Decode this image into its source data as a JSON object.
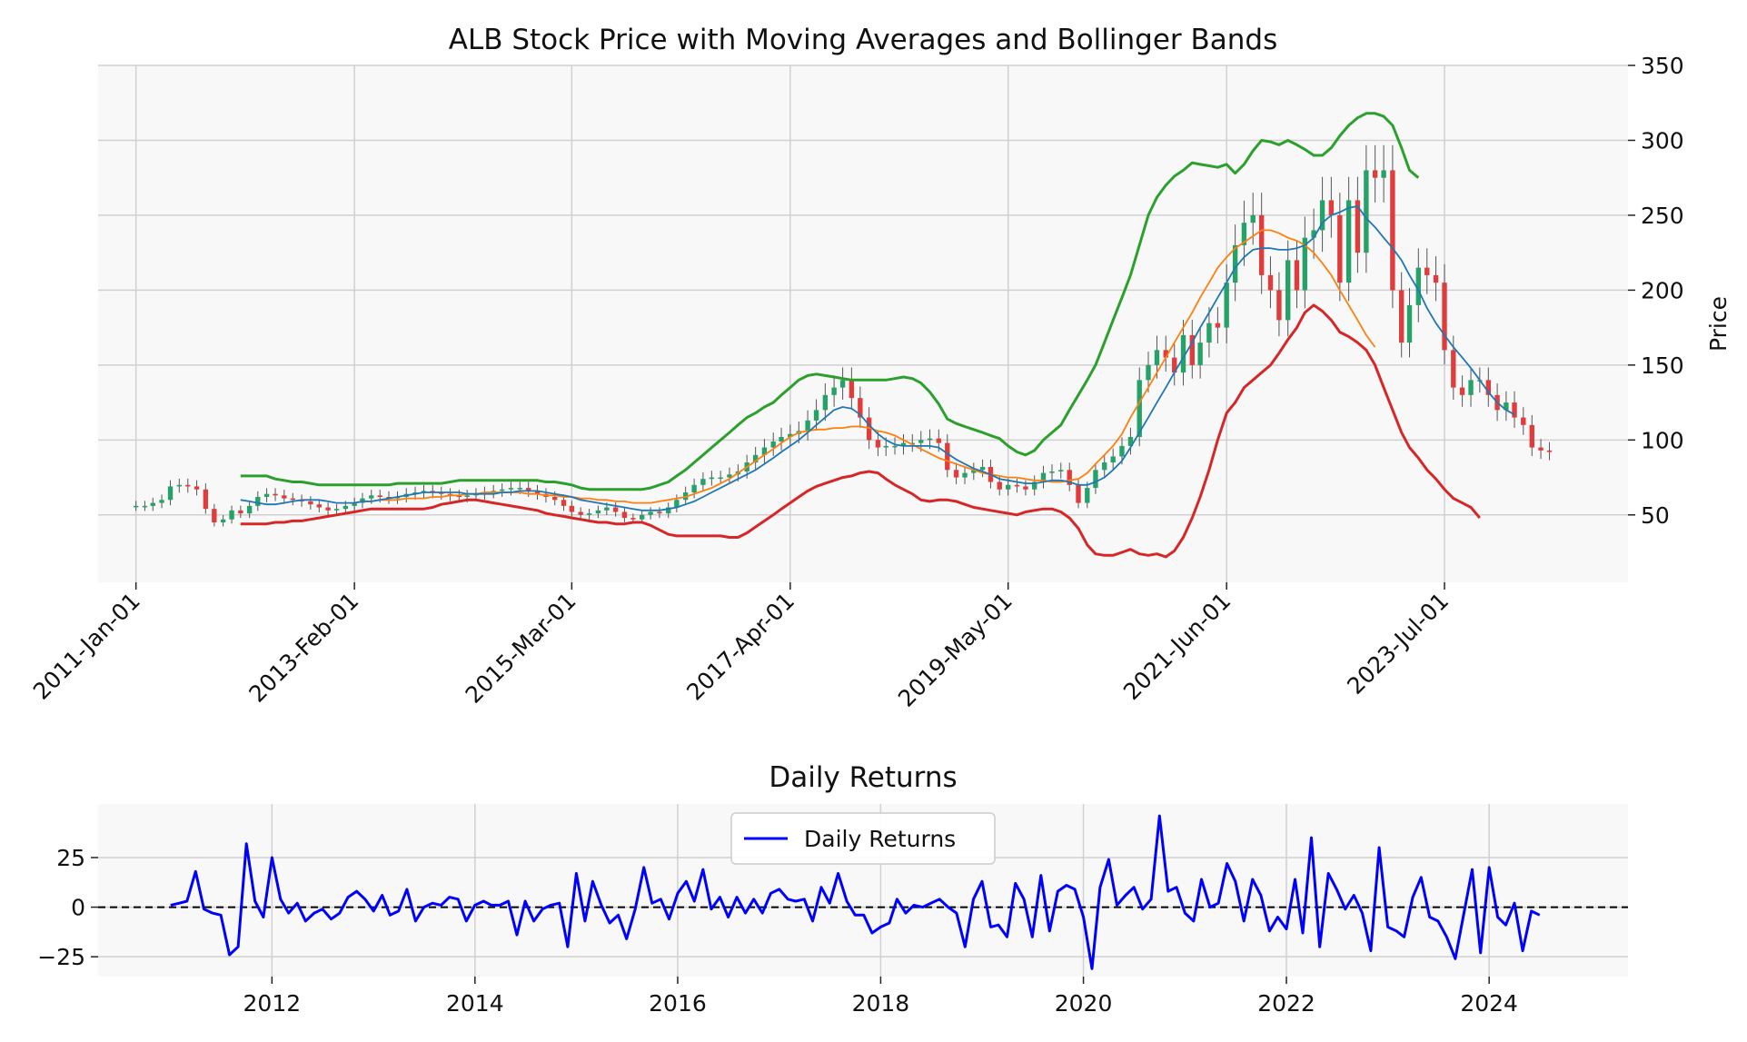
{
  "chart_data": [
    {
      "type": "candlestick",
      "title": "ALB Stock Price with Moving Averages and Bollinger Bands",
      "ylabel": "Price",
      "ylim": [
        5,
        350
      ],
      "yticks": [
        50,
        100,
        150,
        200,
        250,
        300,
        350
      ],
      "xlim": [
        "2010-08-22",
        "2025-04-01"
      ],
      "xticks": [
        "2011-01-01",
        "2013-02-01",
        "2015-03-01",
        "2017-04-01",
        "2019-05-01",
        "2021-06-01",
        "2023-07-01"
      ],
      "xtick_labels": [
        "2011-Jan-01",
        "2013-Feb-01",
        "2015-Mar-01",
        "2017-Apr-01",
        "2019-May-01",
        "2021-Jun-01",
        "2023-Jul-01"
      ],
      "y_axis_side": "right",
      "grid": true,
      "colors": {
        "up": "#26a269",
        "down": "#e03c3c",
        "ma_short": "#1f77b4",
        "ma_long": "#ff7f0e",
        "bb_upper": "#2ca02c",
        "bb_lower": "#d62728",
        "plot_bg": "#f8f8f8"
      },
      "close": [
        56,
        56,
        58,
        60,
        69,
        70,
        69,
        67,
        54,
        45,
        47,
        53,
        51,
        56,
        62,
        64,
        63,
        61,
        60,
        59,
        57,
        55,
        53,
        54,
        56,
        58,
        61,
        63,
        62,
        61,
        62,
        64,
        65,
        66,
        65,
        64,
        63,
        62,
        63,
        64,
        65,
        66,
        67,
        68,
        68,
        66,
        64,
        62,
        60,
        56,
        52,
        50,
        51,
        53,
        55,
        52,
        48,
        47,
        50,
        52,
        51,
        55,
        60,
        65,
        70,
        74,
        75,
        75,
        77,
        79,
        85,
        90,
        95,
        99,
        102,
        104,
        106,
        113,
        120,
        130,
        135,
        140,
        128,
        115,
        100,
        95,
        96,
        96,
        98,
        98,
        100,
        101,
        98,
        80,
        75,
        78,
        80,
        82,
        72,
        67,
        70,
        69,
        67,
        72,
        78,
        79,
        80,
        70,
        58,
        68,
        80,
        85,
        89,
        96,
        102,
        140,
        150,
        160,
        155,
        145,
        170,
        150,
        165,
        178,
        175,
        205,
        230,
        245,
        250,
        210,
        200,
        180,
        220,
        200,
        235,
        240,
        260,
        250,
        205,
        260,
        225,
        280,
        275,
        280,
        200,
        165,
        190,
        215,
        210,
        205,
        160,
        135,
        130,
        140,
        140,
        130,
        120,
        125,
        115,
        110,
        95,
        93,
        92
      ],
      "ma_short": [
        null,
        null,
        null,
        null,
        null,
        null,
        null,
        null,
        null,
        null,
        null,
        null,
        60,
        59,
        58,
        57,
        57,
        58,
        59,
        60,
        60,
        60,
        59,
        58,
        58,
        58,
        59,
        59,
        60,
        61,
        62,
        63,
        64,
        65,
        65,
        65,
        65,
        65,
        64,
        64,
        64,
        64,
        65,
        65,
        66,
        66,
        66,
        65,
        64,
        63,
        62,
        60,
        59,
        58,
        57,
        56,
        55,
        54,
        53,
        53,
        53,
        54,
        55,
        57,
        59,
        62,
        65,
        68,
        71,
        74,
        77,
        80,
        84,
        88,
        92,
        96,
        100,
        105,
        110,
        115,
        120,
        122,
        121,
        117,
        110,
        104,
        100,
        97,
        96,
        96,
        96,
        96,
        95,
        91,
        87,
        84,
        81,
        79,
        77,
        74,
        73,
        72,
        71,
        71,
        72,
        73,
        73,
        72,
        70,
        70,
        72,
        75,
        80,
        86,
        95,
        105,
        115,
        125,
        135,
        145,
        155,
        165,
        175,
        185,
        195,
        205,
        215,
        222,
        227,
        228,
        228,
        227,
        227,
        228,
        230,
        235,
        245,
        250,
        252,
        255,
        256,
        248,
        242,
        235,
        228,
        220,
        210,
        200,
        188,
        178,
        170,
        162,
        155,
        148,
        140,
        132,
        125,
        120,
        117
      ],
      "ma_long": [
        null,
        null,
        null,
        null,
        null,
        null,
        null,
        null,
        null,
        null,
        null,
        null,
        null,
        null,
        null,
        null,
        null,
        null,
        null,
        null,
        null,
        null,
        null,
        null,
        null,
        58,
        59,
        59,
        60,
        60,
        60,
        61,
        61,
        61,
        62,
        62,
        63,
        63,
        64,
        64,
        65,
        65,
        65,
        65,
        65,
        64,
        64,
        63,
        63,
        62,
        62,
        61,
        61,
        60,
        60,
        59,
        59,
        58,
        58,
        58,
        59,
        60,
        61,
        62,
        64,
        66,
        68,
        71,
        74,
        78,
        82,
        86,
        90,
        94,
        98,
        102,
        105,
        106,
        107,
        107,
        108,
        108,
        109,
        109,
        108,
        106,
        105,
        103,
        100,
        97,
        94,
        91,
        88,
        86,
        84,
        82,
        80,
        78,
        77,
        76,
        75,
        75,
        74,
        73,
        73,
        72,
        72,
        73,
        74,
        78,
        84,
        90,
        96,
        104,
        115,
        125,
        135,
        145,
        155,
        165,
        175,
        185,
        195,
        205,
        215,
        222,
        228,
        232,
        236,
        240,
        240,
        238,
        235,
        233,
        230,
        225,
        218,
        210,
        200,
        190,
        180,
        170,
        162
      ],
      "bb_upper": [
        null,
        null,
        null,
        null,
        null,
        null,
        null,
        null,
        null,
        null,
        null,
        null,
        76,
        76,
        76,
        76,
        74,
        73,
        72,
        72,
        71,
        70,
        70,
        70,
        70,
        70,
        70,
        70,
        70,
        70,
        71,
        71,
        71,
        71,
        71,
        71,
        72,
        73,
        73,
        73,
        73,
        73,
        73,
        73,
        73,
        73,
        73,
        72,
        72,
        71,
        70,
        68,
        67,
        67,
        67,
        67,
        67,
        67,
        67,
        68,
        70,
        72,
        76,
        80,
        85,
        90,
        95,
        100,
        105,
        110,
        115,
        118,
        122,
        125,
        130,
        135,
        140,
        143,
        144,
        143,
        142,
        141,
        140,
        140,
        140,
        140,
        140,
        141,
        142,
        141,
        138,
        132,
        124,
        114,
        111,
        109,
        107,
        105,
        103,
        101,
        96,
        92,
        90,
        93,
        100,
        105,
        110,
        120,
        130,
        140,
        150,
        165,
        180,
        195,
        210,
        230,
        250,
        262,
        270,
        276,
        280,
        285,
        284,
        283,
        282,
        284,
        278,
        284,
        293,
        300,
        299,
        297,
        300,
        297,
        294,
        290,
        290,
        295,
        303,
        310,
        315,
        318,
        318,
        316,
        310,
        295,
        280,
        275
      ],
      "bb_lower": [
        null,
        null,
        null,
        null,
        null,
        null,
        null,
        null,
        null,
        null,
        null,
        null,
        44,
        44,
        44,
        44,
        45,
        45,
        46,
        46,
        47,
        48,
        49,
        50,
        51,
        52,
        53,
        54,
        54,
        54,
        54,
        54,
        54,
        54,
        55,
        57,
        58,
        59,
        60,
        60,
        59,
        58,
        57,
        56,
        55,
        54,
        53,
        51,
        50,
        49,
        48,
        47,
        46,
        45,
        45,
        44,
        44,
        45,
        45,
        43,
        40,
        37,
        36,
        36,
        36,
        36,
        36,
        36,
        35,
        35,
        38,
        42,
        46,
        50,
        54,
        58,
        62,
        66,
        69,
        71,
        73,
        75,
        76,
        78,
        79,
        78,
        74,
        70,
        67,
        64,
        60,
        59,
        60,
        60,
        59,
        57,
        55,
        54,
        53,
        52,
        51,
        50,
        52,
        53,
        54,
        54,
        52,
        48,
        41,
        30,
        24,
        23,
        23,
        25,
        27,
        24,
        23,
        24,
        22,
        26,
        35,
        48,
        62,
        80,
        100,
        118,
        125,
        135,
        140,
        145,
        150,
        158,
        167,
        175,
        185,
        190,
        186,
        180,
        172,
        169,
        165,
        160,
        150,
        135,
        120,
        105,
        95,
        88,
        80,
        74,
        67,
        61,
        58,
        55,
        48
      ]
    },
    {
      "type": "line",
      "title": "Daily Returns",
      "ylim": [
        -35,
        52
      ],
      "yticks": [
        -25,
        0,
        25
      ],
      "ytick_labels": [
        "−25",
        "0",
        "25"
      ],
      "xlim": [
        "2010-04-15",
        "2025-05-15"
      ],
      "xticks": [
        "2012",
        "2014",
        "2016",
        "2018",
        "2020",
        "2022",
        "2024"
      ],
      "grid": true,
      "legend_position": "upper center",
      "reference_line": 0,
      "series": [
        {
          "name": "Daily Returns",
          "color": "#0000ff",
          "start": "2011-01",
          "step": "month",
          "values": [
            1,
            2,
            3,
            18,
            -1,
            -3,
            -4,
            -24,
            -20,
            32,
            3,
            -5,
            25,
            4,
            -3,
            2,
            -7,
            -3,
            -1,
            -6,
            -3,
            5,
            8,
            4,
            -2,
            6,
            -4,
            -2,
            9,
            -7,
            0,
            2,
            1,
            5,
            4,
            -7,
            1,
            3,
            1,
            1,
            3,
            -14,
            3,
            -7,
            -1,
            1,
            2,
            -20,
            17,
            -7,
            13,
            1,
            -8,
            -4,
            -16,
            -1,
            20,
            2,
            4,
            -6,
            7,
            13,
            3,
            19,
            -1,
            5,
            -5,
            5,
            -3,
            4,
            -3,
            7,
            9,
            4,
            3,
            4,
            -7,
            10,
            2,
            17,
            3,
            -4,
            -4,
            -13,
            -10,
            -8,
            4,
            -3,
            1,
            0,
            2,
            4,
            0,
            -3,
            -20,
            4,
            13,
            -10,
            -9,
            -15,
            12,
            4,
            -15,
            16,
            -12,
            8,
            11,
            9,
            -5,
            -31,
            10,
            24,
            1,
            6,
            10,
            -1,
            4,
            46,
            8,
            10,
            -3,
            -7,
            14,
            0,
            2,
            22,
            13,
            -7,
            14,
            6,
            -12,
            -5,
            -11,
            14,
            -13,
            35,
            -20,
            17,
            9,
            -1,
            6,
            -3,
            -22,
            30,
            -10,
            -12,
            -15,
            5,
            15,
            -5,
            -7,
            -15,
            -26,
            -4,
            19,
            -23,
            20,
            -5,
            -9,
            2,
            -22,
            -2,
            -4
          ]
        }
      ]
    }
  ]
}
